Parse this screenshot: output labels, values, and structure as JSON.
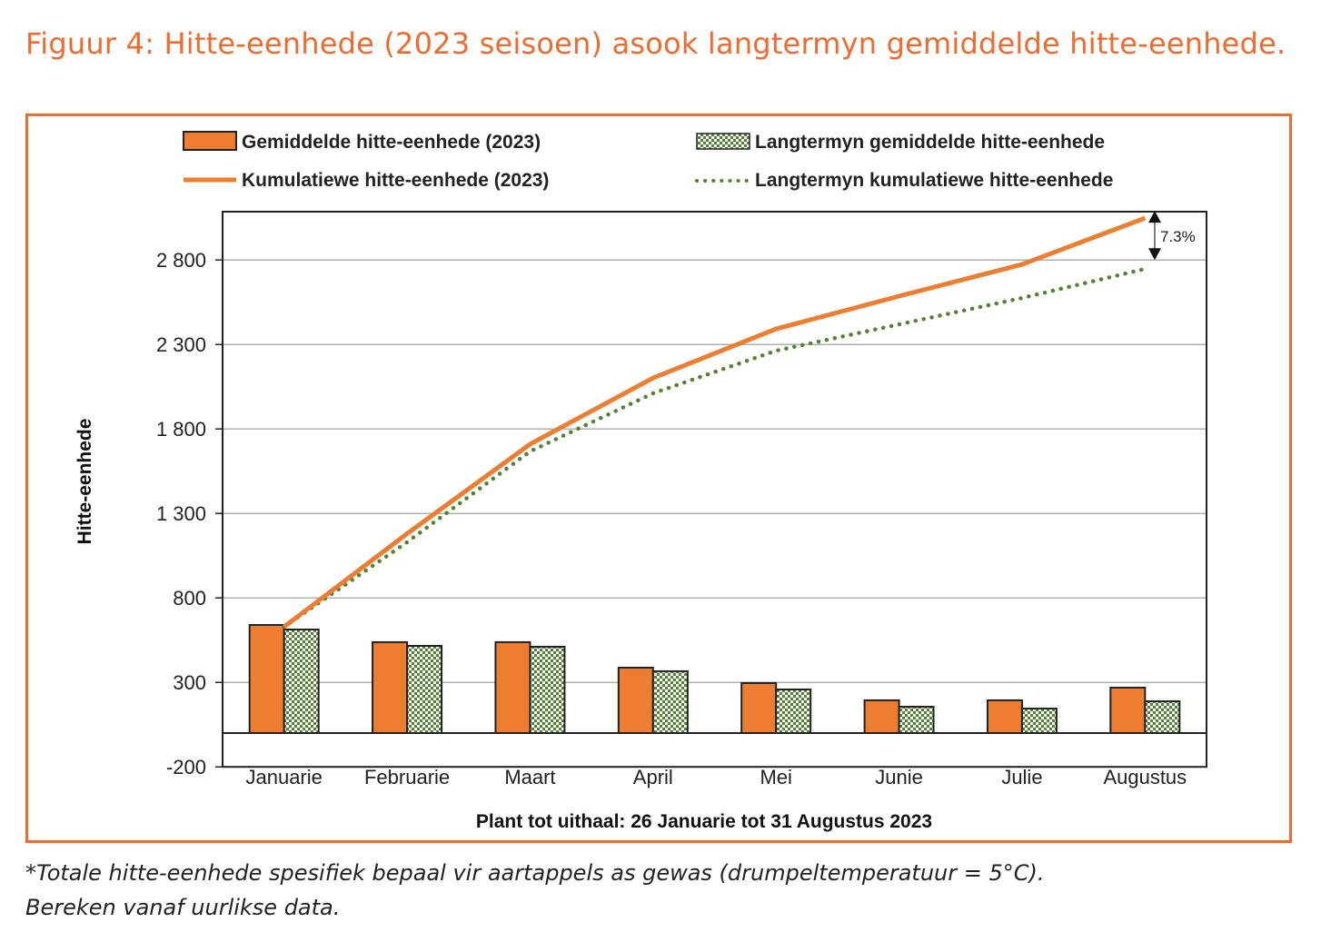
{
  "figure": {
    "title": "Figuur 4: Hitte-eenhede (2023 seisoen) asook langtermyn gemiddelde hitte-eenhede.",
    "footnote_line1": "*Totale hitte-eenhede spesifiek bepaal vir aartappels as gewas (drumpeltemperatuur = 5°C).",
    "footnote_line2": "Bereken vanaf uurlikse data.",
    "accent_color": "#f06a2f"
  },
  "chart_data": {
    "type": "bar",
    "title": "",
    "xlabel": "Plant tot uithaal: 26 Januarie tot 31 Augustus 2023",
    "ylabel": "Hitte-eenhede",
    "ylim": [
      -200,
      3100
    ],
    "yticks": [
      -200,
      300,
      800,
      1300,
      1800,
      2300,
      2800
    ],
    "ytick_labels": [
      "-200",
      "300",
      "800",
      "1 300",
      "1 800",
      "2 300",
      "2 800"
    ],
    "grid": true,
    "legend_position": "top",
    "categories": [
      "Januarie",
      "Februarie",
      "Maart",
      "April",
      "Mei",
      "Junie",
      "Julie",
      "Augustus"
    ],
    "series": [
      {
        "name": "Gemiddelde hitte-eenhede (2023)",
        "kind": "bar",
        "color": "#ed7d31",
        "values": [
          640,
          538,
          538,
          387,
          296,
          194,
          194,
          269
        ]
      },
      {
        "name": "Langtermyn gemiddelde hitte-eenhede",
        "kind": "bar",
        "pattern": "checker",
        "color": "#548235",
        "values": [
          613,
          516,
          511,
          366,
          258,
          156,
          145,
          188
        ]
      },
      {
        "name": "Kumulatiewe hitte-eenhede (2023)",
        "kind": "line",
        "style": "solid",
        "color": "#ed7d31",
        "values": [
          629,
          1180,
          1710,
          2102,
          2392,
          2586,
          2774,
          3048
        ]
      },
      {
        "name": "Langtermyn kumulatiewe hitte-eenhede",
        "kind": "line",
        "style": "dotted",
        "color": "#548235",
        "values": [
          629,
          1130,
          1667,
          2011,
          2263,
          2419,
          2575,
          2747
        ]
      }
    ],
    "annotations": [
      {
        "text": "7.3%",
        "type": "double-arrow",
        "between_values": [
          3048,
          2800
        ],
        "at_category": "Augustus"
      }
    ]
  }
}
